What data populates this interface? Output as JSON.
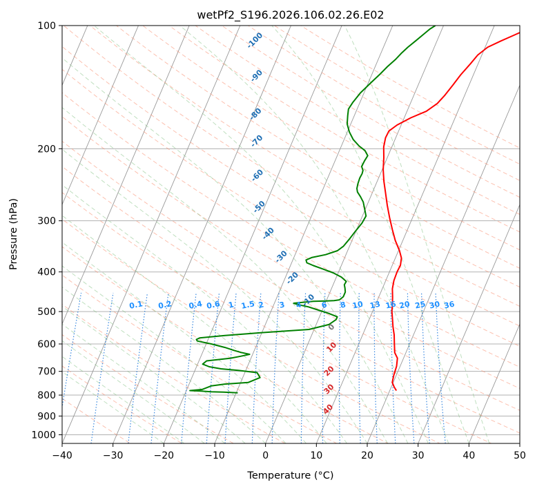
{
  "chart_data": {
    "type": "line",
    "title": "wetPf2_S196.2026.106.02.26.E02",
    "xlabel": "Temperature (°C)",
    "ylabel": "Pressure (hPa)",
    "xlim": [
      -40,
      50
    ],
    "ylim": [
      1050,
      100
    ],
    "y_scale": "log",
    "grid": true,
    "x_ticks": [
      -40,
      -30,
      -20,
      -10,
      0,
      10,
      20,
      30,
      40,
      50
    ],
    "y_ticks": [
      1000,
      900,
      800,
      700,
      600,
      500,
      400,
      300,
      200,
      100
    ],
    "series": [
      {
        "color": "#ff0000",
        "points": [
          [
            21.3,
            780
          ],
          [
            20.6,
            765
          ],
          [
            19.8,
            745
          ],
          [
            19.5,
            715
          ],
          [
            19.3,
            680
          ],
          [
            18.8,
            650
          ],
          [
            17.8,
            630
          ],
          [
            17.0,
            600
          ],
          [
            16.2,
            570
          ],
          [
            15.3,
            545
          ],
          [
            14.5,
            520
          ],
          [
            13.8,
            500
          ],
          [
            13.3,
            480
          ],
          [
            12.7,
            460
          ],
          [
            12.0,
            440
          ],
          [
            11.6,
            420
          ],
          [
            11.5,
            400
          ],
          [
            11.6,
            385
          ],
          [
            11.2,
            370
          ],
          [
            10.2,
            355
          ],
          [
            8.5,
            335
          ],
          [
            7.0,
            315
          ],
          [
            5.5,
            295
          ],
          [
            4.0,
            275
          ],
          [
            2.5,
            255
          ],
          [
            1.3,
            240
          ],
          [
            0.2,
            225
          ],
          [
            -0.7,
            210
          ],
          [
            -1.6,
            198
          ],
          [
            -2.0,
            188
          ],
          [
            -1.9,
            181
          ],
          [
            -0.8,
            175
          ],
          [
            1.3,
            168
          ],
          [
            3.8,
            162
          ],
          [
            5.3,
            155
          ],
          [
            6.1,
            148
          ],
          [
            6.8,
            140
          ],
          [
            7.5,
            132
          ],
          [
            8.5,
            124
          ],
          [
            9.2,
            118
          ],
          [
            10.5,
            113
          ],
          [
            12.6,
            109
          ],
          [
            14.4,
            106
          ],
          [
            15.6,
            104
          ],
          [
            16.2,
            102
          ],
          [
            17.2,
            100
          ]
        ]
      },
      {
        "color": "#008000",
        "points": [
          [
            -9.7,
            790
          ],
          [
            -12.5,
            787
          ],
          [
            -15.0,
            785
          ],
          [
            -17.0,
            782
          ],
          [
            -19.3,
            780
          ],
          [
            -17.0,
            775
          ],
          [
            -15.5,
            760
          ],
          [
            -13.0,
            752
          ],
          [
            -8.5,
            745
          ],
          [
            -6.6,
            725
          ],
          [
            -7.6,
            705
          ],
          [
            -11.5,
            696
          ],
          [
            -15.0,
            690
          ],
          [
            -17.5,
            682
          ],
          [
            -19.0,
            672
          ],
          [
            -18.5,
            660
          ],
          [
            -14.0,
            650
          ],
          [
            -12.2,
            643
          ],
          [
            -10.6,
            636
          ],
          [
            -12.5,
            629
          ],
          [
            -14.0,
            622
          ],
          [
            -16.0,
            612
          ],
          [
            -19.0,
            600
          ],
          [
            -22.0,
            590
          ],
          [
            -22.3,
            585
          ],
          [
            -21.8,
            580
          ],
          [
            -17.0,
            572
          ],
          [
            -10.0,
            563
          ],
          [
            -1.0,
            553
          ],
          [
            2.5,
            538
          ],
          [
            3.5,
            523
          ],
          [
            3.5,
            515
          ],
          [
            1.5,
            505
          ],
          [
            -1.0,
            495
          ],
          [
            -3.0,
            487
          ],
          [
            -5.5,
            480
          ],
          [
            -6.2,
            477
          ],
          [
            -4.0,
            474
          ],
          [
            -2.5,
            472
          ],
          [
            0.0,
            471
          ],
          [
            1.5,
            470
          ],
          [
            2.5,
            468
          ],
          [
            3.0,
            460
          ],
          [
            3.0,
            448
          ],
          [
            2.6,
            438
          ],
          [
            2.2,
            430
          ],
          [
            2.3,
            422
          ],
          [
            1.0,
            412
          ],
          [
            -1.0,
            402
          ],
          [
            -3.5,
            393
          ],
          [
            -5.5,
            386
          ],
          [
            -7.0,
            380
          ],
          [
            -7.4,
            374
          ],
          [
            -6.5,
            369
          ],
          [
            -4.0,
            363
          ],
          [
            -2.0,
            355
          ],
          [
            -1.2,
            346
          ],
          [
            -0.6,
            332
          ],
          [
            -0.1,
            318
          ],
          [
            0.5,
            304
          ],
          [
            0.7,
            292
          ],
          [
            -0.2,
            280
          ],
          [
            -1.0,
            270
          ],
          [
            -2.0,
            262
          ],
          [
            -3.0,
            255
          ],
          [
            -3.4,
            250
          ],
          [
            -3.6,
            243
          ],
          [
            -3.7,
            236
          ],
          [
            -3.6,
            230
          ],
          [
            -3.7,
            226
          ],
          [
            -4.3,
            221
          ],
          [
            -4.2,
            214
          ],
          [
            -4.0,
            208
          ],
          [
            -5.0,
            202
          ],
          [
            -6.5,
            197
          ],
          [
            -8.2,
            190
          ],
          [
            -9.6,
            182
          ],
          [
            -10.7,
            174
          ],
          [
            -11.3,
            166
          ],
          [
            -11.7,
            160
          ],
          [
            -11.4,
            154
          ],
          [
            -10.7,
            146
          ],
          [
            -9.5,
            138
          ],
          [
            -8.5,
            132
          ],
          [
            -7.6,
            126
          ],
          [
            -6.6,
            121
          ],
          [
            -6.0,
            117
          ],
          [
            -5.2,
            113
          ],
          [
            -4.2,
            109
          ],
          [
            -3.2,
            105
          ],
          [
            -2.4,
            102
          ],
          [
            -1.6,
            100
          ]
        ]
      }
    ],
    "dry_adiabat_labels": [
      {
        "text": "-100",
        "x": -35.8,
        "p": 109,
        "color": "#1f6fb4"
      },
      {
        "text": "-90",
        "x": -32.5,
        "p": 133,
        "color": "#1f6fb4"
      },
      {
        "text": "-80",
        "x": -29.5,
        "p": 165,
        "color": "#1f6fb4"
      },
      {
        "text": "-70",
        "x": -27.0,
        "p": 192,
        "color": "#1f6fb4"
      },
      {
        "text": "-60",
        "x": -24.0,
        "p": 233,
        "color": "#1f6fb4"
      },
      {
        "text": "-50",
        "x": -21.0,
        "p": 278,
        "color": "#1f6fb4"
      },
      {
        "text": "-40",
        "x": -17.0,
        "p": 323,
        "color": "#1f6fb4"
      },
      {
        "text": "-30",
        "x": -12.5,
        "p": 368,
        "color": "#1f6fb4"
      },
      {
        "text": "-20",
        "x": -8.5,
        "p": 415,
        "color": "#1f6fb4"
      },
      {
        "text": "-10",
        "x": -3.5,
        "p": 470,
        "color": "#1f6fb4"
      }
    ],
    "moist_adiabat_labels": [
      {
        "text": "0",
        "x": 3.3,
        "p": 547,
        "color": "#777777"
      },
      {
        "text": "10",
        "x": 5.0,
        "p": 612,
        "color": "#d62728"
      },
      {
        "text": "20",
        "x": 6.5,
        "p": 700,
        "color": "#d62728"
      },
      {
        "text": "30",
        "x": 8.0,
        "p": 775,
        "color": "#d62728"
      },
      {
        "text": "40",
        "x": 9.5,
        "p": 868,
        "color": "#d62728"
      }
    ],
    "mixing_ratio_labels": {
      "pressure": 500,
      "color": "#1e90ff",
      "items": [
        {
          "text": "0.1",
          "x": -36.5
        },
        {
          "text": "0.2",
          "x": -30.8
        },
        {
          "text": "0.4",
          "x": -24.8
        },
        {
          "text": "0.6",
          "x": -21.3
        },
        {
          "text": "1",
          "x": -17.8
        },
        {
          "text": "1.5",
          "x": -14.5
        },
        {
          "text": "2",
          "x": -11.9
        },
        {
          "text": "3",
          "x": -7.8
        },
        {
          "text": "4",
          "x": -4.5
        },
        {
          "text": "6",
          "x": 0.5
        },
        {
          "text": "8",
          "x": 4.2
        },
        {
          "text": "10",
          "x": 7.1
        },
        {
          "text": "13",
          "x": 10.5
        },
        {
          "text": "16",
          "x": 13.6
        },
        {
          "text": "20",
          "x": 16.3
        },
        {
          "text": "25",
          "x": 19.4
        },
        {
          "text": "30",
          "x": 22.2
        },
        {
          "text": "36",
          "x": 25.1
        }
      ]
    },
    "colors": {
      "temperature": "#ff0000",
      "dewpoint": "#008000",
      "isotherm": "#999999",
      "isobar": "#aaaaaa",
      "dry_adiabat": "#fa8c6e",
      "moist_adiabat": "#7fbf7f",
      "mixing_ratio": "#1e78dc"
    }
  }
}
